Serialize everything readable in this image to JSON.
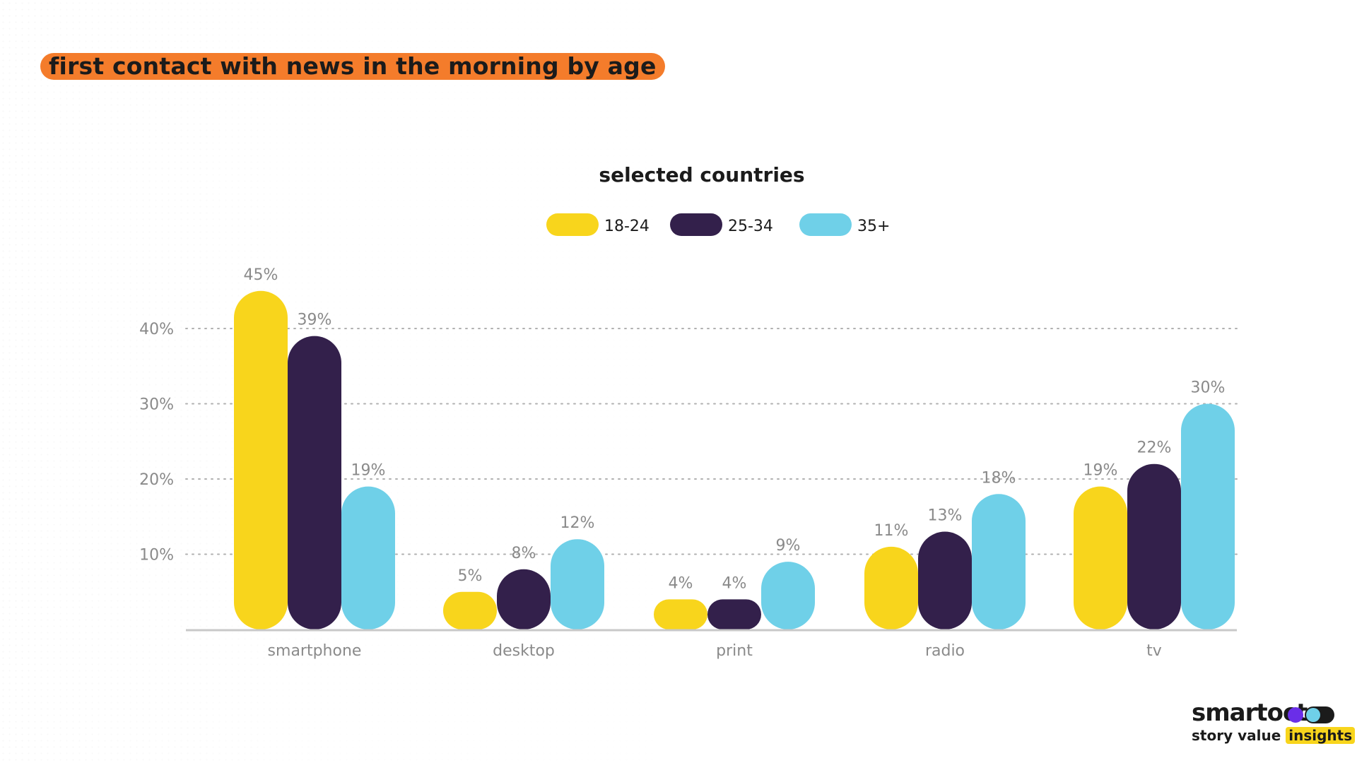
{
  "title": "first contact with news in the morning by age",
  "colors": {
    "accent": "#f47c2b",
    "series": [
      "#f8d51c",
      "#33204b",
      "#6fd0e8"
    ],
    "grid": "#b0b0b0",
    "axis_text": "#8a8a8a",
    "baseline": "#c8c8c8"
  },
  "chart_data": {
    "type": "bar",
    "title": "selected countries",
    "xlabel": "",
    "ylabel": "",
    "ylim": [
      0,
      45
    ],
    "yticks": [
      10,
      20,
      30,
      40
    ],
    "ytick_labels": [
      "10%",
      "20%",
      "30%",
      "40%"
    ],
    "grid": true,
    "legend": "top-center",
    "categories": [
      "smartphone",
      "desktop",
      "print",
      "radio",
      "tv"
    ],
    "series": [
      {
        "name": "18-24",
        "values": [
          45,
          5,
          4,
          11,
          19
        ],
        "labels": [
          "45%",
          "5%",
          "4%",
          "11%",
          "19%"
        ]
      },
      {
        "name": "25-34",
        "values": [
          39,
          8,
          4,
          13,
          22
        ],
        "labels": [
          "39%",
          "8%",
          "4%",
          "13%",
          "22%"
        ]
      },
      {
        "name": "35+",
        "values": [
          19,
          12,
          9,
          18,
          30
        ],
        "labels": [
          "19%",
          "12%",
          "9%",
          "18%",
          "30%"
        ]
      }
    ]
  },
  "logo": {
    "word": "smartoct",
    "tagline": "story value",
    "tagline_highlight": "insights"
  }
}
